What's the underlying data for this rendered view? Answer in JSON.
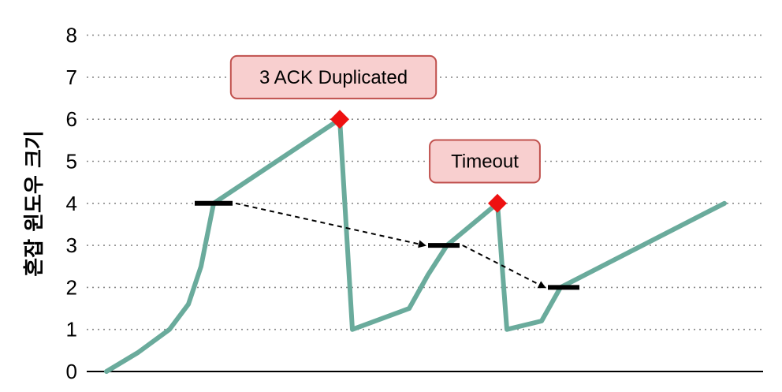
{
  "chart_data": {
    "type": "line",
    "title": "",
    "xlabel": "",
    "ylabel": "혼잡 윈도우 크기",
    "ylim": [
      0,
      8
    ],
    "yticks": [
      "0",
      "1",
      "2",
      "3",
      "4",
      "5",
      "6",
      "7",
      "8"
    ],
    "grid": "horizontal dotted",
    "colors": {
      "line": "#6aab9c",
      "peak": "#ee1111",
      "threshold": "#000000",
      "annotation_fill": "#f8cfcf",
      "annotation_border": "#c0504d"
    },
    "series": [
      {
        "values": [
          [
            0.0,
            0.0
          ],
          [
            0.5,
            0.45
          ],
          [
            1.0,
            1.0
          ],
          [
            1.3,
            1.6
          ],
          [
            1.5,
            2.5
          ],
          [
            1.7,
            4.0
          ],
          [
            3.7,
            6.0
          ],
          [
            3.9,
            1.0
          ],
          [
            4.8,
            1.5
          ],
          [
            5.1,
            2.3
          ],
          [
            5.4,
            3.0
          ],
          [
            6.2,
            4.0
          ],
          [
            6.35,
            1.0
          ],
          [
            6.9,
            1.2
          ],
          [
            7.2,
            2.0
          ],
          [
            9.8,
            4.0
          ]
        ]
      }
    ],
    "thresholds": [
      {
        "x_start": 1.4,
        "x_end": 2.0,
        "y": 4
      },
      {
        "x_start": 5.1,
        "x_end": 5.6,
        "y": 3
      },
      {
        "x_start": 7.0,
        "x_end": 7.5,
        "y": 2
      }
    ],
    "peaks": [
      {
        "x": 3.7,
        "y": 6
      },
      {
        "x": 6.2,
        "y": 4
      }
    ],
    "arrows": [
      {
        "from": [
          2.0,
          4.0
        ],
        "to": [
          5.1,
          3.0
        ]
      },
      {
        "from": [
          5.6,
          3.0
        ],
        "to": [
          7.0,
          2.0
        ]
      }
    ],
    "annotations": [
      {
        "text": "3 ACK Duplicated",
        "x": 3.6,
        "y": 7.0
      },
      {
        "text": "Timeout",
        "x": 6.0,
        "y": 5.0
      }
    ]
  }
}
